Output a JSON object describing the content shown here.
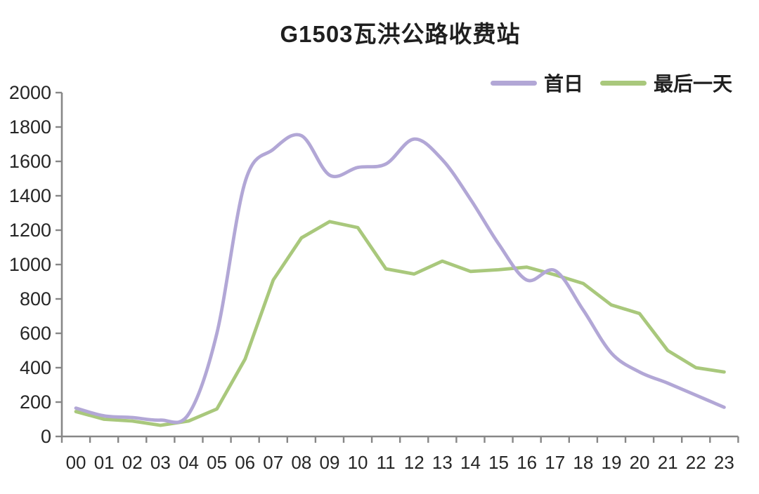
{
  "chart_data": {
    "type": "line",
    "title": "G1503瓦洪公路收费站",
    "categories": [
      "00",
      "01",
      "02",
      "03",
      "04",
      "05",
      "06",
      "07",
      "08",
      "09",
      "10",
      "11",
      "12",
      "13",
      "14",
      "15",
      "16",
      "17",
      "18",
      "19",
      "20",
      "21",
      "22",
      "23"
    ],
    "series": [
      {
        "name": "首日",
        "color": "#b2a7d6",
        "smooth": true,
        "values": [
          165,
          120,
          110,
          95,
          130,
          600,
          1480,
          1670,
          1750,
          1520,
          1565,
          1585,
          1730,
          1610,
          1380,
          1120,
          910,
          965,
          735,
          485,
          375,
          310,
          240,
          170
        ]
      },
      {
        "name": "最后一天",
        "color": "#a9c87c",
        "smooth": false,
        "values": [
          145,
          100,
          90,
          65,
          90,
          160,
          450,
          910,
          1155,
          1250,
          1215,
          975,
          945,
          1020,
          960,
          970,
          985,
          940,
          890,
          765,
          715,
          500,
          400,
          375
        ]
      }
    ],
    "xlabel": "",
    "ylabel": "",
    "ylim": [
      0,
      2000
    ],
    "y_ticks": [
      0,
      200,
      400,
      600,
      800,
      1000,
      1200,
      1400,
      1600,
      1800,
      2000
    ],
    "grid": false,
    "legend_position": "top-right",
    "axis_color": "#878787",
    "text_color": "#262626",
    "background_color": "#ffffff"
  }
}
